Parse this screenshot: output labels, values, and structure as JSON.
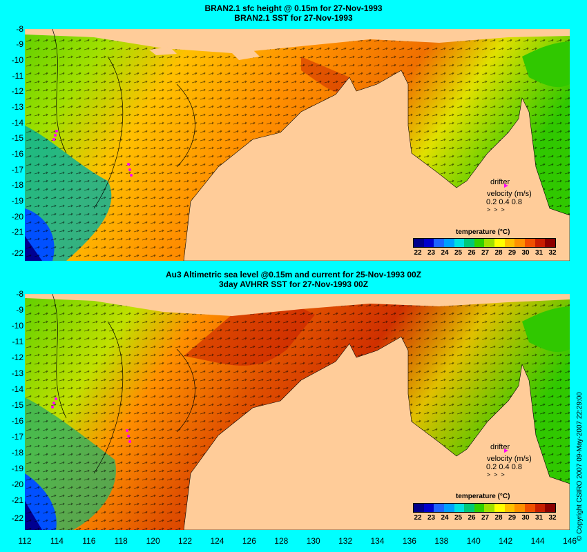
{
  "panel1": {
    "title_line1": "BRAN2.1 sfc height @ 0.15m for 27-Nov-1993",
    "title_line2": "BRAN2.1 SST for 27-Nov-1993"
  },
  "panel2": {
    "title_line1": "Au3 Altimetric sea level  @0.15m and current for 25-Nov-1993 00Z",
    "title_line2": "3day AVHRR SST for 27-Nov-1993 00Z"
  },
  "y_ticks": [
    "-8",
    "-9",
    "-10",
    "-11",
    "-12",
    "-13",
    "-14",
    "-15",
    "-16",
    "-17",
    "-18",
    "-19",
    "-20",
    "-21",
    "-22"
  ],
  "x_ticks": [
    "112",
    "114",
    "116",
    "118",
    "120",
    "122",
    "124",
    "126",
    "128",
    "130",
    "132",
    "134",
    "136",
    "138",
    "140",
    "142",
    "144",
    "146"
  ],
  "legend": {
    "drifter_label": "drifter",
    "velocity_label": "velocity (m/s)",
    "scale_values": "0.2 0.4 0.8"
  },
  "colorbar": {
    "title": "temperature (°C)",
    "labels": [
      "22",
      "23",
      "24",
      "25",
      "26",
      "27",
      "28",
      "29",
      "30",
      "31",
      "32"
    ],
    "colors": [
      "#00008B",
      "#0000CD",
      "#1E64FF",
      "#00A0FF",
      "#00E0E0",
      "#00C878",
      "#30D000",
      "#A0E000",
      "#FFFF00",
      "#FFC000",
      "#FF9000",
      "#F05000",
      "#C81E00",
      "#8B0000"
    ]
  },
  "colors": {
    "background": "#00FFFF",
    "land": "#FFCC99",
    "shelf": "#C8A88C",
    "drifter": "#FF00FF"
  },
  "copyright": "© Copyright CSIRO 2007   09-May-2007 22:29:00"
}
